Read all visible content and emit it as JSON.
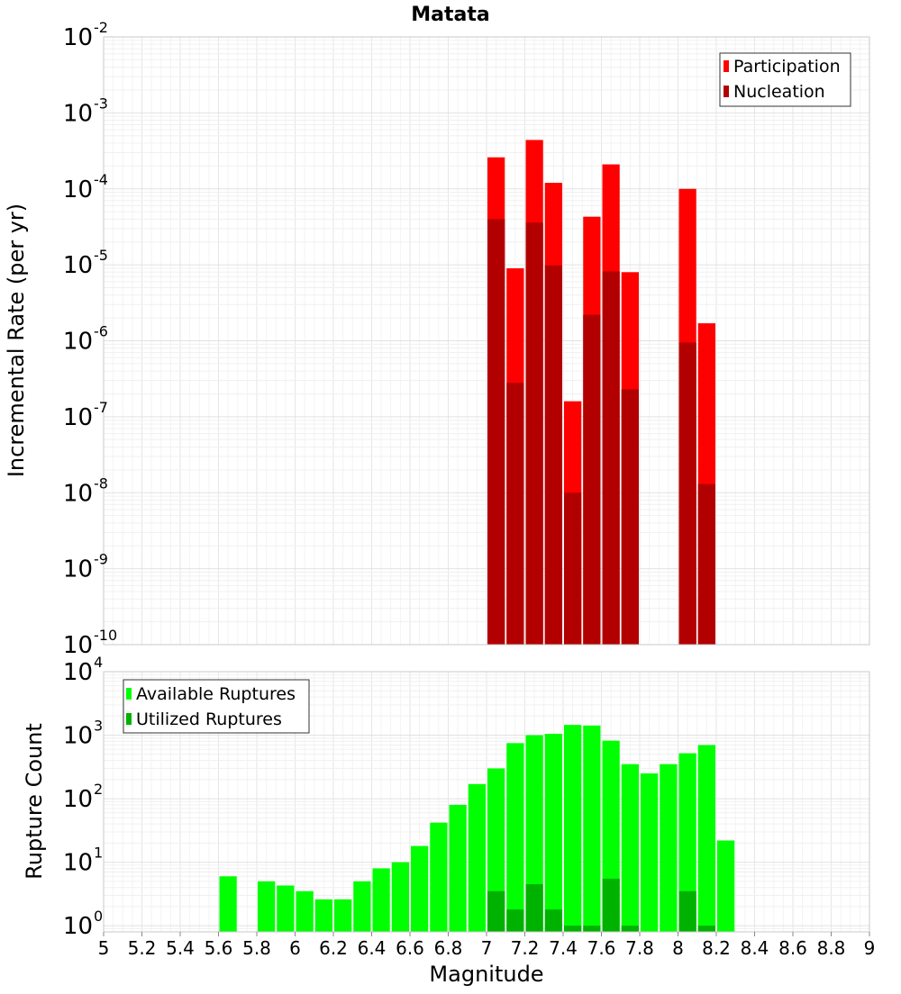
{
  "chart_data": [
    {
      "type": "bar",
      "title": "Matata",
      "xlabel": "",
      "ylabel": "Incremental Rate (per yr)",
      "yscale": "log",
      "ylim": [
        1e-10,
        0.01
      ],
      "y_ticks": [
        {
          "base": "10",
          "exp": "-10"
        },
        {
          "base": "10",
          "exp": "-9"
        },
        {
          "base": "10",
          "exp": "-8"
        },
        {
          "base": "10",
          "exp": "-7"
        },
        {
          "base": "10",
          "exp": "-6"
        },
        {
          "base": "10",
          "exp": "-5"
        },
        {
          "base": "10",
          "exp": "-4"
        },
        {
          "base": "10",
          "exp": "-3"
        },
        {
          "base": "10",
          "exp": "-2"
        }
      ],
      "xlim": [
        5,
        9
      ],
      "bar_width": 0.1,
      "grid": true,
      "legend_position": "top-right",
      "series": [
        {
          "name": "Participation",
          "color": "#ff0000",
          "points": [
            {
              "x": 7.05,
              "y": 0.00026
            },
            {
              "x": 7.15,
              "y": 9e-06
            },
            {
              "x": 7.25,
              "y": 0.00044
            },
            {
              "x": 7.35,
              "y": 0.00012
            },
            {
              "x": 7.45,
              "y": 1.6e-07
            },
            {
              "x": 7.55,
              "y": 4.3e-05
            },
            {
              "x": 7.65,
              "y": 0.00021
            },
            {
              "x": 7.75,
              "y": 8e-06
            },
            {
              "x": 8.05,
              "y": 0.0001
            },
            {
              "x": 8.15,
              "y": 1.7e-06
            }
          ]
        },
        {
          "name": "Nucleation",
          "color": "#b20000",
          "points": [
            {
              "x": 7.05,
              "y": 4e-05
            },
            {
              "x": 7.15,
              "y": 2.8e-07
            },
            {
              "x": 7.25,
              "y": 3.6e-05
            },
            {
              "x": 7.35,
              "y": 9.8e-06
            },
            {
              "x": 7.45,
              "y": 1e-08
            },
            {
              "x": 7.55,
              "y": 2.2e-06
            },
            {
              "x": 7.65,
              "y": 8.2e-06
            },
            {
              "x": 7.75,
              "y": 2.3e-07
            },
            {
              "x": 8.05,
              "y": 9.5e-07
            },
            {
              "x": 8.15,
              "y": 1.3e-08
            }
          ]
        }
      ]
    },
    {
      "type": "bar",
      "title": "",
      "xlabel": "Magnitude",
      "ylabel": "Rupture Count",
      "yscale": "log",
      "ylim": [
        0.8,
        10000
      ],
      "y_ticks": [
        {
          "value": 1,
          "base": "10",
          "exp": "0"
        },
        {
          "value": 10,
          "base": "10",
          "exp": "1"
        },
        {
          "value": 100,
          "base": "10",
          "exp": "2"
        },
        {
          "value": 1000,
          "base": "10",
          "exp": "3"
        },
        {
          "value": 10000,
          "base": "10",
          "exp": "4"
        }
      ],
      "xlim": [
        5,
        9
      ],
      "x_ticks": [
        "5",
        "5.2",
        "5.4",
        "5.6",
        "5.8",
        "6",
        "6.2",
        "6.4",
        "6.6",
        "6.8",
        "7",
        "7.2",
        "7.4",
        "7.6",
        "7.8",
        "8",
        "8.2",
        "8.4",
        "8.6",
        "8.8",
        "9"
      ],
      "bar_width": 0.1,
      "grid": true,
      "legend_position": "top-left",
      "series": [
        {
          "name": "Available Ruptures",
          "color": "#00ff00",
          "points": [
            {
              "x": 5.65,
              "y": 6
            },
            {
              "x": 5.85,
              "y": 5
            },
            {
              "x": 5.95,
              "y": 4.3
            },
            {
              "x": 6.05,
              "y": 3.5
            },
            {
              "x": 6.15,
              "y": 2.6
            },
            {
              "x": 6.25,
              "y": 2.6
            },
            {
              "x": 6.35,
              "y": 5
            },
            {
              "x": 6.45,
              "y": 8
            },
            {
              "x": 6.55,
              "y": 10
            },
            {
              "x": 6.65,
              "y": 18
            },
            {
              "x": 6.75,
              "y": 42
            },
            {
              "x": 6.85,
              "y": 80
            },
            {
              "x": 6.95,
              "y": 170
            },
            {
              "x": 7.05,
              "y": 300
            },
            {
              "x": 7.15,
              "y": 750
            },
            {
              "x": 7.25,
              "y": 1000
            },
            {
              "x": 7.35,
              "y": 1050
            },
            {
              "x": 7.45,
              "y": 1450
            },
            {
              "x": 7.55,
              "y": 1420
            },
            {
              "x": 7.65,
              "y": 820
            },
            {
              "x": 7.75,
              "y": 350
            },
            {
              "x": 7.85,
              "y": 250
            },
            {
              "x": 7.95,
              "y": 350
            },
            {
              "x": 8.05,
              "y": 520
            },
            {
              "x": 8.15,
              "y": 700
            },
            {
              "x": 8.25,
              "y": 22
            }
          ]
        },
        {
          "name": "Utilized Ruptures",
          "color": "#00b200",
          "points": [
            {
              "x": 7.05,
              "y": 3.5
            },
            {
              "x": 7.15,
              "y": 1.8
            },
            {
              "x": 7.25,
              "y": 4.5
            },
            {
              "x": 7.35,
              "y": 1.8
            },
            {
              "x": 7.45,
              "y": 1
            },
            {
              "x": 7.55,
              "y": 1
            },
            {
              "x": 7.65,
              "y": 5.5
            },
            {
              "x": 7.75,
              "y": 1
            },
            {
              "x": 8.05,
              "y": 3.5
            },
            {
              "x": 8.15,
              "y": 1
            }
          ]
        }
      ]
    }
  ]
}
